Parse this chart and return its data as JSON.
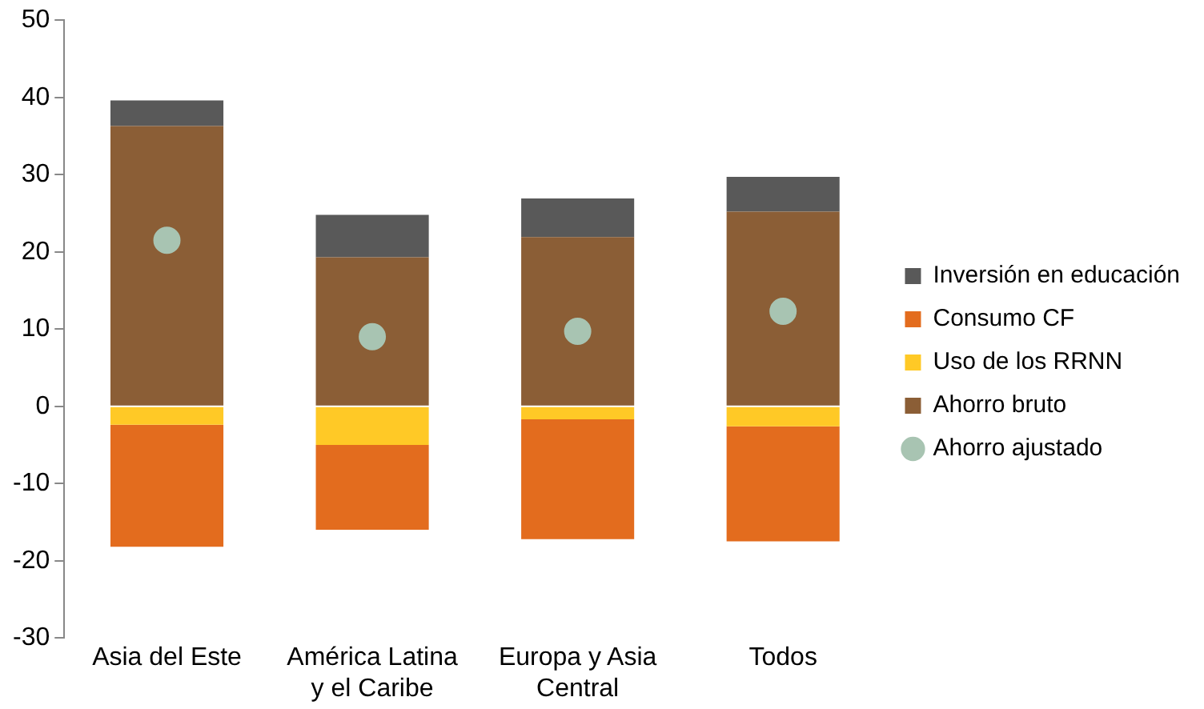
{
  "chart_data": {
    "type": "bar",
    "categories": [
      "Asia del Este",
      "América Latina y el Caribe",
      "Europa y Asia Central",
      "Todos"
    ],
    "stacked": true,
    "series": [
      {
        "name": "Ahorro bruto",
        "color": "#8b5e36",
        "values": [
          36.3,
          19.3,
          21.9,
          25.2
        ]
      },
      {
        "name": "Uso de los RRNN",
        "color": "#ffc926",
        "values": [
          -2.4,
          -5,
          -1.7,
          -2.6
        ]
      },
      {
        "name": "Consumo CF",
        "color": "#e36c1e",
        "values": [
          -15.8,
          -11,
          -15.5,
          -14.9
        ]
      },
      {
        "name": "Inversión en educación",
        "color": "#595959",
        "values": [
          3.3,
          5.5,
          5,
          4.5
        ]
      },
      {
        "name": "Ahorro ajustado",
        "type": "scatter",
        "color": "#a8c4b2",
        "values": [
          21.5,
          9,
          9.7,
          12.3
        ]
      }
    ],
    "ylim": [
      -30,
      50
    ],
    "yticks": [
      -30,
      -20,
      -10,
      0,
      10,
      20,
      30,
      40,
      50
    ],
    "grid": false,
    "legend": "right",
    "marker": "circle"
  }
}
